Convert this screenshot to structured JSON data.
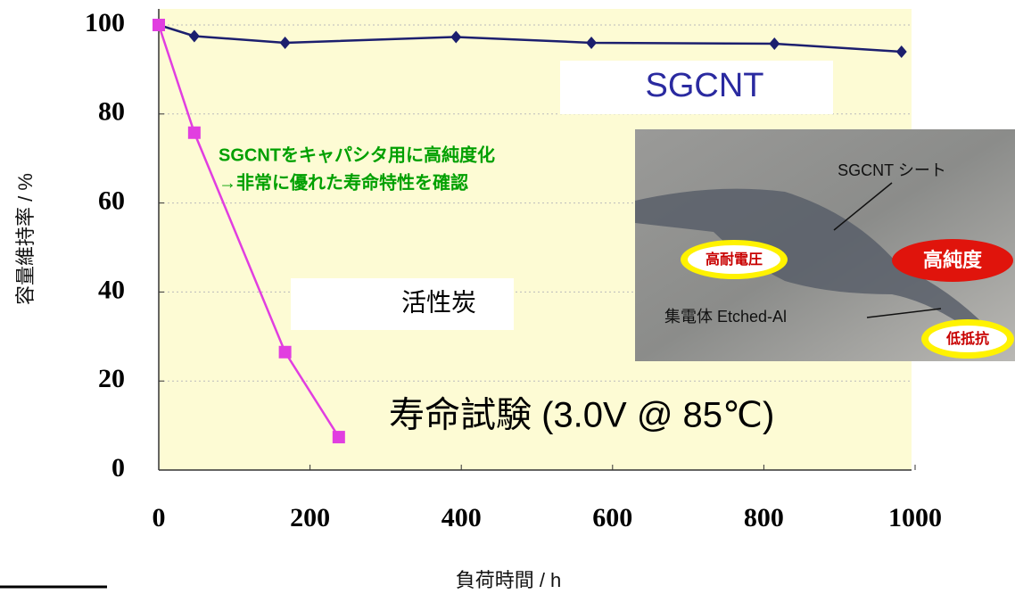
{
  "chart_data": {
    "type": "line",
    "x_label": "負荷時間 / h",
    "y_label": "容量維持率 / %",
    "xlim": [
      0,
      1000
    ],
    "xticks": [
      0,
      200,
      400,
      600,
      800,
      1000
    ],
    "ylim": [
      0,
      100
    ],
    "yticks": [
      0,
      20,
      40,
      60,
      80,
      100
    ],
    "grid": true,
    "series": [
      {
        "name": "SGCNT",
        "color": "#1c1f6e",
        "marker": "diamond",
        "x": [
          0,
          47,
          167,
          393,
          572,
          814,
          982
        ],
        "values": [
          100,
          97.5,
          96,
          97.3,
          96,
          95.8,
          94
        ]
      },
      {
        "name": "活性炭",
        "color": "#e13ee0",
        "marker": "square",
        "x": [
          0,
          47,
          167,
          238
        ],
        "values": [
          100,
          75.8,
          26.5,
          7.4
        ]
      }
    ],
    "annotations": [
      "SGCNTをキャパシタ用に高純度化",
      "→非常に優れた寿命特性を確認",
      "寿命試験  (3.0V @ 85℃)"
    ],
    "inset_labels": [
      "SGCNT シート",
      "高耐電圧",
      "高純度",
      "集電体 Etched-Al",
      "低抵抗"
    ]
  }
}
